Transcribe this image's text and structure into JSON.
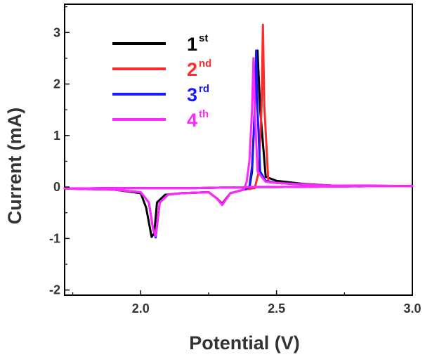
{
  "chart_data": {
    "type": "line",
    "title": "",
    "xlabel": "Potential (V)",
    "ylabel": "Current (mA)",
    "xlim": [
      1.72,
      3.0
    ],
    "ylim": [
      -2.1,
      3.55
    ],
    "x_ticks": [
      2.0,
      2.5,
      3.0
    ],
    "x_tick_labels": [
      "2.0",
      "2.5",
      "3.0"
    ],
    "y_ticks": [
      -2,
      -1,
      0,
      1,
      2,
      3
    ],
    "y_tick_labels": [
      "-2",
      "-1",
      "0",
      "1",
      "2",
      "3"
    ],
    "grid": false,
    "legend_position": "top-left",
    "series": [
      {
        "name": "1st",
        "label_main": "1",
        "label_sup": "st",
        "color": "#000000",
        "x": [
          1.72,
          1.9,
          2.0,
          2.02,
          2.04,
          2.05,
          2.06,
          2.09,
          2.15,
          2.25,
          2.28,
          2.3,
          2.33,
          2.38,
          2.4,
          2.41,
          2.42,
          2.43,
          2.44,
          2.46,
          2.5,
          2.6,
          2.7,
          3.0,
          2.9,
          2.7,
          2.5,
          2.46,
          2.44,
          2.43,
          2.42,
          2.41,
          2.4,
          2.38,
          2.3,
          2.2,
          2.1,
          2.0,
          1.9,
          1.72
        ],
        "y": [
          -0.03,
          -0.05,
          -0.12,
          -0.4,
          -0.97,
          -0.9,
          -0.3,
          -0.15,
          -0.12,
          -0.1,
          -0.22,
          -0.32,
          -0.12,
          -0.05,
          -0.02,
          0.3,
          1.5,
          2.65,
          1.5,
          0.2,
          0.12,
          0.06,
          0.03,
          0.02,
          0.02,
          0.01,
          0.0,
          0.0,
          0.0,
          0.0,
          0.0,
          0.0,
          0.0,
          -0.01,
          -0.01,
          -0.02,
          -0.02,
          -0.02,
          -0.02,
          -0.03
        ]
      },
      {
        "name": "2nd",
        "label_main": "2",
        "label_sup": "nd",
        "color": "#ff2a2a",
        "x": [
          1.72,
          1.9,
          2.0,
          2.03,
          2.045,
          2.055,
          2.07,
          2.1,
          2.15,
          2.25,
          2.28,
          2.3,
          2.33,
          2.38,
          2.42,
          2.435,
          2.445,
          2.45,
          2.455,
          2.47,
          2.5,
          2.6,
          2.7,
          3.0,
          2.9,
          2.7,
          2.5,
          2.46,
          2.44,
          2.43,
          2.42,
          2.41,
          2.4,
          2.38,
          2.3,
          2.2,
          2.1,
          2.0,
          1.9,
          1.72
        ],
        "y": [
          -0.03,
          -0.05,
          -0.1,
          -0.3,
          -0.8,
          -0.97,
          -0.3,
          -0.15,
          -0.12,
          -0.1,
          -0.22,
          -0.32,
          -0.12,
          -0.05,
          -0.02,
          0.3,
          1.6,
          3.15,
          1.6,
          0.1,
          0.08,
          0.05,
          0.03,
          0.02,
          0.02,
          0.01,
          0.0,
          0.0,
          0.0,
          0.0,
          0.0,
          0.0,
          0.0,
          -0.01,
          -0.01,
          -0.02,
          -0.02,
          -0.02,
          -0.02,
          -0.03
        ]
      },
      {
        "name": "3rd",
        "label_main": "3",
        "label_sup": "rd",
        "color": "#1a1aff",
        "x": [
          1.72,
          1.9,
          2.0,
          2.03,
          2.045,
          2.055,
          2.07,
          2.1,
          2.15,
          2.25,
          2.28,
          2.3,
          2.33,
          2.38,
          2.4,
          2.41,
          2.42,
          2.425,
          2.43,
          2.44,
          2.46,
          2.5,
          2.6,
          2.7,
          3.0,
          2.9,
          2.7,
          2.5,
          2.46,
          2.44,
          2.43,
          2.42,
          2.41,
          2.4,
          2.38,
          2.3,
          2.2,
          2.1,
          2.0,
          1.9,
          1.72
        ],
        "y": [
          -0.03,
          -0.05,
          -0.1,
          -0.3,
          -0.8,
          -0.98,
          -0.3,
          -0.15,
          -0.12,
          -0.1,
          -0.22,
          -0.34,
          -0.12,
          -0.05,
          0.0,
          0.4,
          1.5,
          2.65,
          1.5,
          0.3,
          0.12,
          0.08,
          0.05,
          0.03,
          0.02,
          0.02,
          0.01,
          0.0,
          0.0,
          0.0,
          0.0,
          0.0,
          0.0,
          0.0,
          -0.01,
          -0.01,
          -0.02,
          -0.02,
          -0.02,
          -0.02,
          -0.03
        ]
      },
      {
        "name": "4th",
        "label_main": "4",
        "label_sup": "th",
        "color": "#ff28ff",
        "x": [
          1.72,
          1.9,
          2.0,
          2.03,
          2.045,
          2.055,
          2.07,
          2.1,
          2.15,
          2.25,
          2.28,
          2.3,
          2.33,
          2.38,
          2.39,
          2.4,
          2.41,
          2.415,
          2.42,
          2.43,
          2.46,
          2.5,
          2.6,
          2.7,
          3.0,
          2.9,
          2.7,
          2.5,
          2.46,
          2.44,
          2.43,
          2.42,
          2.41,
          2.4,
          2.38,
          2.3,
          2.2,
          2.1,
          2.0,
          1.9,
          1.72
        ],
        "y": [
          -0.03,
          -0.05,
          -0.1,
          -0.3,
          -0.8,
          -0.95,
          -0.3,
          -0.15,
          -0.12,
          -0.1,
          -0.22,
          -0.35,
          -0.12,
          -0.05,
          0.1,
          0.5,
          1.5,
          2.5,
          1.5,
          0.3,
          0.1,
          0.08,
          0.05,
          0.03,
          0.02,
          0.02,
          0.01,
          0.0,
          0.0,
          0.0,
          0.0,
          0.0,
          0.0,
          0.0,
          -0.01,
          -0.01,
          -0.02,
          -0.02,
          -0.02,
          -0.02,
          -0.03
        ]
      }
    ]
  }
}
